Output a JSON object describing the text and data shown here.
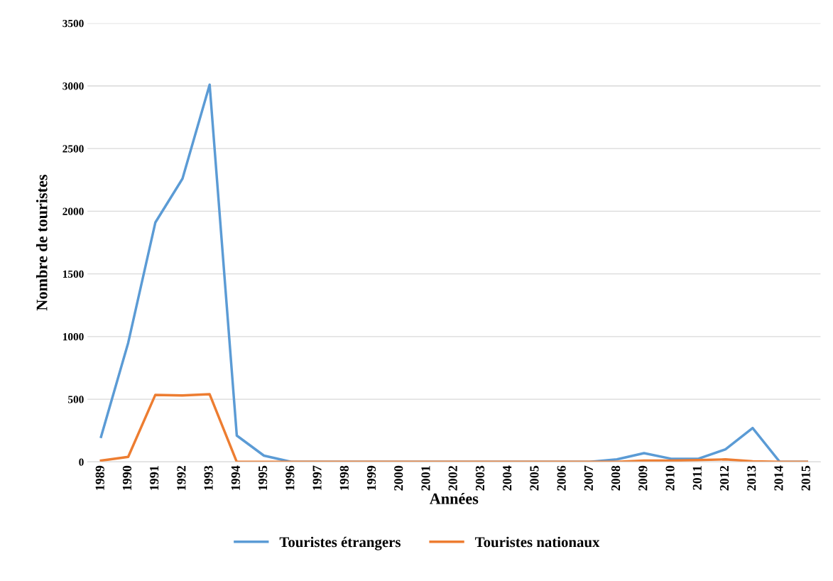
{
  "chart_data": {
    "type": "line",
    "xlabel": "Années",
    "ylabel": "Nombre de touristes",
    "categories": [
      "1989",
      "1990",
      "1991",
      "1992",
      "1993",
      "1994",
      "1995",
      "1996",
      "1997",
      "1998",
      "1999",
      "2000",
      "2001",
      "2002",
      "2003",
      "2004",
      "2005",
      "2006",
      "2007",
      "2008",
      "2009",
      "2010",
      "2011",
      "2012",
      "2013",
      "2014",
      "2015"
    ],
    "series": [
      {
        "name": "Touristes étrangers",
        "color": "#5b9bd5",
        "values": [
          200,
          950,
          1910,
          2260,
          3010,
          210,
          50,
          0,
          0,
          0,
          0,
          0,
          0,
          0,
          0,
          0,
          0,
          0,
          0,
          20,
          70,
          25,
          25,
          100,
          270,
          0,
          0
        ]
      },
      {
        "name": "Touristes nationaux",
        "color": "#ed7d31",
        "values": [
          10,
          40,
          535,
          530,
          540,
          0,
          0,
          0,
          0,
          0,
          0,
          0,
          0,
          0,
          0,
          0,
          0,
          0,
          0,
          0,
          10,
          10,
          15,
          20,
          5,
          0,
          0
        ]
      }
    ],
    "ylim": [
      0,
      3500
    ],
    "yticks": [
      0,
      500,
      1000,
      1500,
      2000,
      2500,
      3000,
      3500
    ],
    "grid": "y",
    "legend": "bottom",
    "marker": "none",
    "line_style": "solid"
  }
}
